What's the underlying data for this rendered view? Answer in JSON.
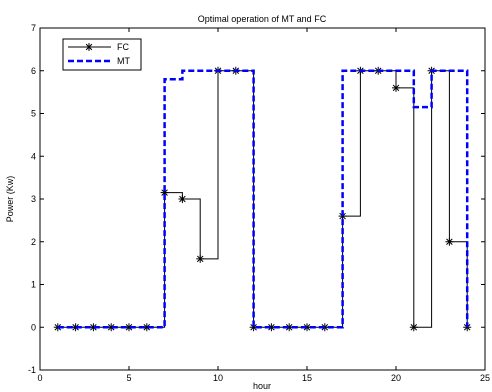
{
  "chart_data": {
    "type": "line",
    "title": "Optimal operation of MT and FC",
    "xlabel": "hour",
    "ylabel": "Power (Kw)",
    "xlim": [
      0,
      25
    ],
    "ylim": [
      -1,
      7
    ],
    "xticks": [
      0,
      5,
      10,
      15,
      20,
      25
    ],
    "yticks": [
      -1,
      0,
      1,
      2,
      3,
      4,
      5,
      6,
      7
    ],
    "grid": false,
    "legend_position": "top-left",
    "series": [
      {
        "name": "FC",
        "style": "step",
        "color": "#000000",
        "marker": "asterisk",
        "x": [
          1,
          2,
          3,
          4,
          5,
          6,
          7,
          8,
          9,
          10,
          11,
          12,
          13,
          14,
          15,
          16,
          17,
          18,
          19,
          20,
          21,
          22,
          23,
          24
        ],
        "y": [
          0,
          0,
          0,
          0,
          0,
          0,
          3.15,
          3.0,
          1.6,
          6.0,
          6.0,
          0,
          0,
          0,
          0,
          0,
          2.6,
          6.0,
          6.0,
          5.6,
          0,
          6.0,
          2.0,
          0
        ]
      },
      {
        "name": "MT",
        "style": "step",
        "color": "#0000ff",
        "linestyle": "dashed",
        "x": [
          1,
          2,
          3,
          4,
          5,
          6,
          7,
          8,
          9,
          10,
          11,
          12,
          13,
          14,
          15,
          16,
          17,
          18,
          19,
          20,
          21,
          22,
          23,
          24
        ],
        "y": [
          0,
          0,
          0,
          0,
          0,
          0,
          5.8,
          6.0,
          6.0,
          6.0,
          6.0,
          0,
          0,
          0,
          0,
          0,
          6.0,
          6.0,
          6.0,
          6.0,
          5.15,
          6.0,
          6.0,
          0
        ]
      }
    ]
  }
}
